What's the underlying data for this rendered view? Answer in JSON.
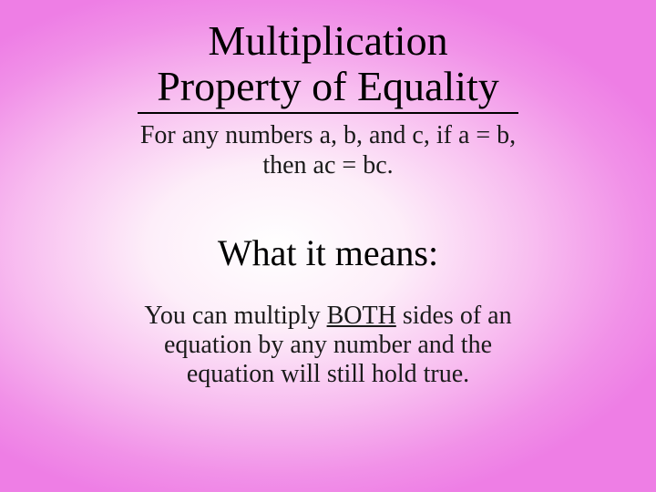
{
  "slide": {
    "title_line1": "Multiplication",
    "title_line2": "Property of Equality",
    "definition_line1": "For any numbers a, b, and c, if a = b,",
    "definition_line2": "then ac = bc.",
    "subtitle": "What it means:",
    "explanation_before": "You can multiply ",
    "explanation_underlined": "BOTH",
    "explanation_after1": " sides of an",
    "explanation_line2": "equation by any number and the",
    "explanation_line3": "equation will still hold true.",
    "background_gradient": {
      "type": "radial",
      "center": "42% 50%",
      "stops": [
        "#ffffff",
        "#fdeef9",
        "#f8bef0",
        "#f191e8",
        "#ee7ee5"
      ]
    },
    "title_fontsize": 46,
    "body_fontsize": 28,
    "subtitle_fontsize": 40,
    "underline_width": 418,
    "text_color": "#000000"
  }
}
